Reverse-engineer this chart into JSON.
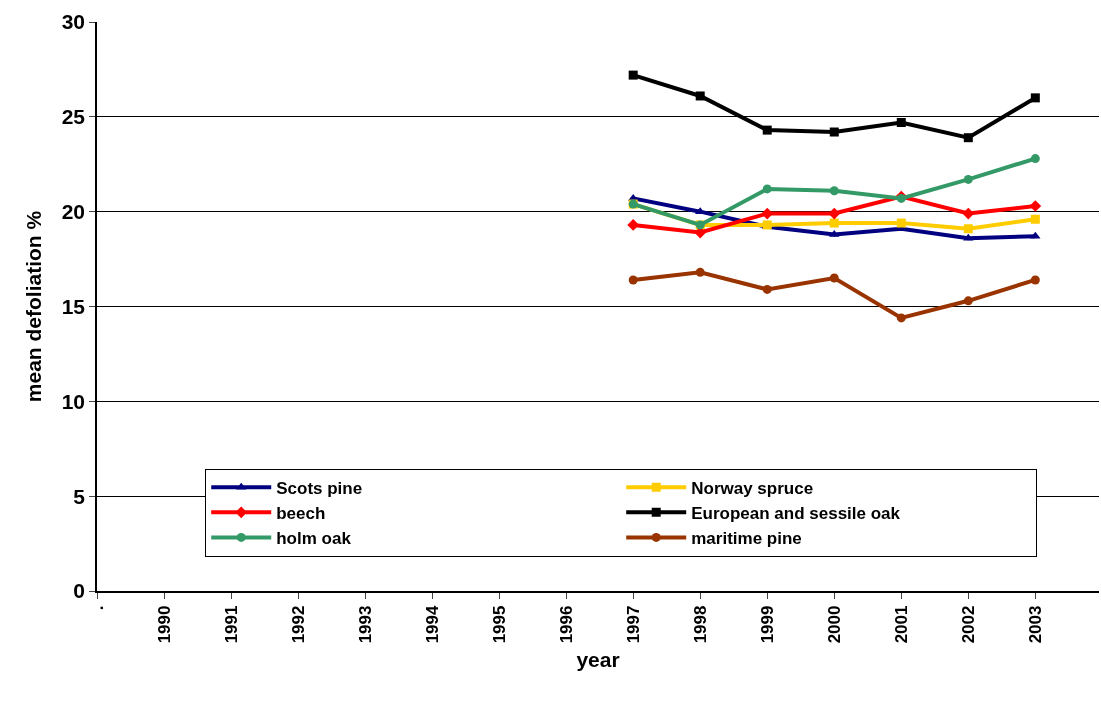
{
  "chart_data": {
    "type": "line",
    "xlabel": "year",
    "ylabel": "mean defoliation %",
    "categories": [
      ".",
      "1990",
      "1991",
      "1992",
      "1993",
      "1994",
      "1995",
      "1996",
      "1997",
      "1998",
      "1999",
      "2000",
      "2001",
      "2002",
      "2003"
    ],
    "series": [
      {
        "name": "Scots pine",
        "color": "#000080",
        "marker": "triangle",
        "values": [
          null,
          null,
          null,
          null,
          null,
          null,
          null,
          null,
          20.7,
          20.0,
          19.2,
          18.8,
          19.1,
          18.6,
          18.7
        ]
      },
      {
        "name": "Norway spruce",
        "color": "#ffcc00",
        "marker": "square",
        "values": [
          null,
          null,
          null,
          null,
          null,
          null,
          null,
          null,
          20.4,
          19.3,
          19.3,
          19.4,
          19.4,
          19.1,
          19.6
        ]
      },
      {
        "name": "beech",
        "color": "#ff0000",
        "marker": "diamond",
        "values": [
          null,
          null,
          null,
          null,
          null,
          null,
          null,
          null,
          19.3,
          18.9,
          19.9,
          19.9,
          20.8,
          19.9,
          20.3
        ]
      },
      {
        "name": "European and sessile oak",
        "color": "#000000",
        "marker": "square",
        "values": [
          null,
          null,
          null,
          null,
          null,
          null,
          null,
          null,
          27.2,
          26.1,
          24.3,
          24.2,
          24.7,
          23.9,
          26.0
        ]
      },
      {
        "name": "holm oak",
        "color": "#339966",
        "marker": "circle",
        "values": [
          null,
          null,
          null,
          null,
          null,
          null,
          null,
          null,
          20.4,
          19.3,
          21.2,
          21.1,
          20.7,
          21.7,
          22.8
        ]
      },
      {
        "name": "maritime pine",
        "color": "#993300",
        "marker": "circle",
        "values": [
          null,
          null,
          null,
          null,
          null,
          null,
          null,
          null,
          16.4,
          16.8,
          15.9,
          16.5,
          14.4,
          15.3,
          16.4
        ]
      }
    ],
    "ylim": [
      0,
      30
    ],
    "yticks": [
      0,
      5,
      10,
      15,
      20,
      25,
      30
    ],
    "grid": "y",
    "legend": "bottom"
  }
}
